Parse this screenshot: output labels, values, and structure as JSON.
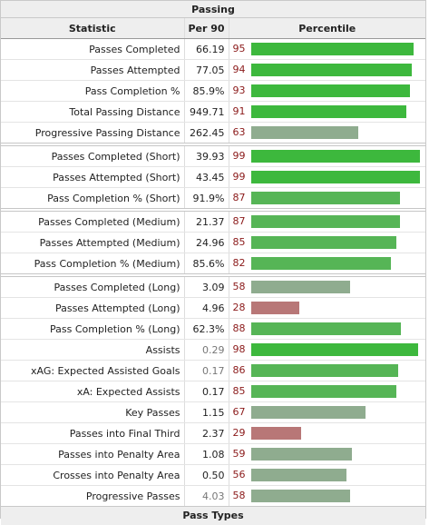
{
  "title": "Passing",
  "next_title": "Pass Types",
  "headers": {
    "statistic": "Statistic",
    "per90": "Per 90",
    "percentile": "Percentile"
  },
  "colors": {
    "high": "#3db83d",
    "mid_high": "#56b556",
    "mid": "#8fac8f",
    "low": "#b87777"
  },
  "groups": [
    [
      {
        "stat": "Passes Completed",
        "per90": "66.19",
        "pct": "95"
      },
      {
        "stat": "Passes Attempted",
        "per90": "77.05",
        "pct": "94"
      },
      {
        "stat": "Pass Completion %",
        "per90": "85.9%",
        "pct": "93"
      },
      {
        "stat": "Total Passing Distance",
        "per90": "949.71",
        "pct": "91"
      },
      {
        "stat": "Progressive Passing Distance",
        "per90": "262.45",
        "pct": "63"
      }
    ],
    [
      {
        "stat": "Passes Completed (Short)",
        "per90": "39.93",
        "pct": "99"
      },
      {
        "stat": "Passes Attempted (Short)",
        "per90": "43.45",
        "pct": "99"
      },
      {
        "stat": "Pass Completion % (Short)",
        "per90": "91.9%",
        "pct": "87"
      }
    ],
    [
      {
        "stat": "Passes Completed (Medium)",
        "per90": "21.37",
        "pct": "87"
      },
      {
        "stat": "Passes Attempted (Medium)",
        "per90": "24.96",
        "pct": "85"
      },
      {
        "stat": "Pass Completion % (Medium)",
        "per90": "85.6%",
        "pct": "82"
      }
    ],
    [
      {
        "stat": "Passes Completed (Long)",
        "per90": "3.09",
        "pct": "58"
      },
      {
        "stat": "Passes Attempted (Long)",
        "per90": "4.96",
        "pct": "28"
      },
      {
        "stat": "Pass Completion % (Long)",
        "per90": "62.3%",
        "pct": "88"
      },
      {
        "stat": "Assists",
        "per90": "0.29",
        "pct": "98",
        "light": true
      },
      {
        "stat": "xAG: Expected Assisted Goals",
        "per90": "0.17",
        "pct": "86",
        "light": true
      },
      {
        "stat": "xA: Expected Assists",
        "per90": "0.17",
        "pct": "85"
      },
      {
        "stat": "Key Passes",
        "per90": "1.15",
        "pct": "67"
      },
      {
        "stat": "Passes into Final Third",
        "per90": "2.37",
        "pct": "29"
      },
      {
        "stat": "Passes into Penalty Area",
        "per90": "1.08",
        "pct": "59"
      },
      {
        "stat": "Crosses into Penalty Area",
        "per90": "0.50",
        "pct": "56"
      },
      {
        "stat": "Progressive Passes",
        "per90": "4.03",
        "pct": "58",
        "light": true
      }
    ]
  ]
}
